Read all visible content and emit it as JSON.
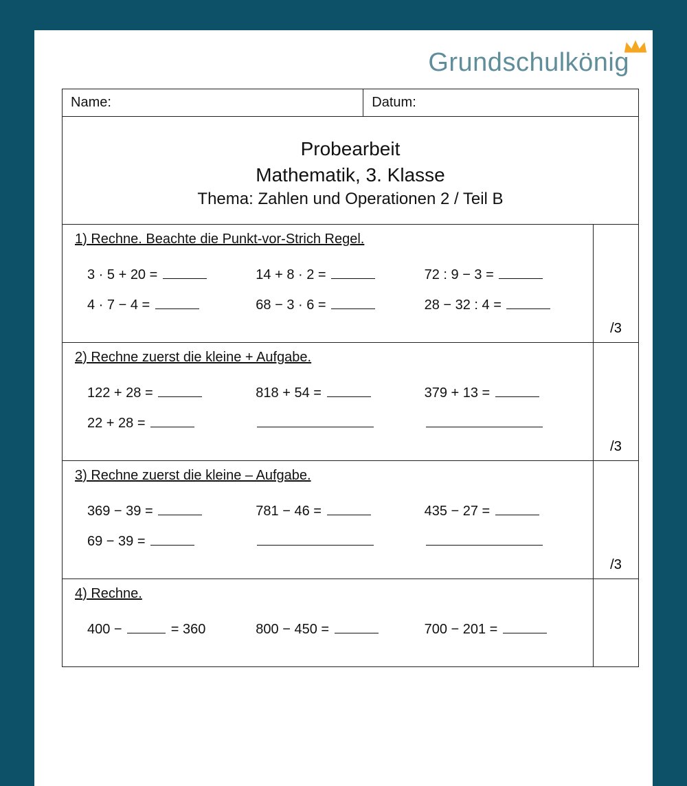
{
  "colors": {
    "page_background": "#0d5168",
    "paper": "#ffffff",
    "text": "#111111",
    "border": "#222222",
    "logo": "#5f8d9a",
    "crown": "#f5a623"
  },
  "logo": {
    "text": "Grundschulkönig"
  },
  "meta": {
    "name_label": "Name:",
    "date_label": "Datum:"
  },
  "title": {
    "line1": "Probearbeit",
    "line2": "Mathematik, 3. Klasse",
    "line3": "Thema: Zahlen und Operationen 2 / Teil B"
  },
  "exercises": [
    {
      "num": "1)",
      "title": "Rechne. Beachte die Punkt-vor-Strich Regel.",
      "points": "/3",
      "rows": [
        [
          {
            "type": "eq",
            "pre": "3 · 5 + 20 = ",
            "blank": "std"
          },
          {
            "type": "eq",
            "pre": "14 + 8 · 2 = ",
            "blank": "std"
          },
          {
            "type": "eq",
            "pre": "72 : 9 − 3 = ",
            "blank": "std"
          }
        ],
        [
          {
            "type": "eq",
            "pre": "4 · 7 − 4  = ",
            "blank": "std"
          },
          {
            "type": "eq",
            "pre": "68 − 3 · 6 = ",
            "blank": "std"
          },
          {
            "type": "eq",
            "pre": "28 − 32 : 4 = ",
            "blank": "std"
          }
        ]
      ]
    },
    {
      "num": "2)",
      "title": "Rechne zuerst die kleine + Aufgabe.",
      "points": "/3",
      "rows": [
        [
          {
            "type": "eq",
            "pre": "122 + 28 =  ",
            "blank": "std"
          },
          {
            "type": "eq",
            "pre": "818 +  54 = ",
            "blank": "std"
          },
          {
            "type": "eq",
            "pre": "379 + 13 = ",
            "blank": "std"
          }
        ],
        [
          {
            "type": "eq",
            "pre": "  22 + 28 =  ",
            "blank": "std"
          },
          {
            "type": "line",
            "blank": "long"
          },
          {
            "type": "line",
            "blank": "long"
          }
        ]
      ]
    },
    {
      "num": "3)",
      "title": "Rechne zuerst die kleine – Aufgabe.",
      "points": "/3",
      "rows": [
        [
          {
            "type": "eq",
            "pre": "369 − 39 = ",
            "blank": "std"
          },
          {
            "type": "eq",
            "pre": "781 − 46 = ",
            "blank": "std"
          },
          {
            "type": "eq",
            "pre": "435 − 27 = ",
            "blank": "std"
          }
        ],
        [
          {
            "type": "eq",
            "pre": "  69 − 39 = ",
            "blank": "std"
          },
          {
            "type": "line",
            "blank": "long"
          },
          {
            "type": "line",
            "blank": "long"
          }
        ]
      ]
    },
    {
      "num": "4)",
      "title": "Rechne.",
      "points": "",
      "rows": [
        [
          {
            "type": "gap",
            "pre": "400 − ",
            "mid": true,
            "post": " = 360"
          },
          {
            "type": "eq",
            "pre": "800 − 450 = ",
            "blank": "std"
          },
          {
            "type": "eq",
            "pre": "700 − 201 = ",
            "blank": "std"
          }
        ]
      ]
    }
  ]
}
